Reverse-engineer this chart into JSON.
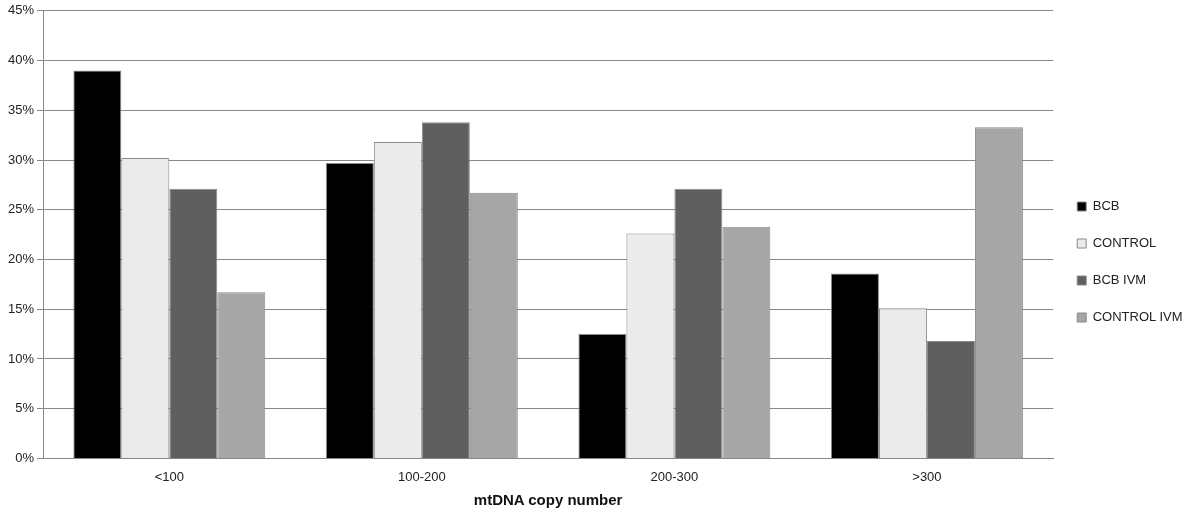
{
  "chart_data": {
    "type": "bar",
    "xlabel": "mtDNA copy number",
    "categories": [
      "<100",
      "100-200",
      "200-300",
      ">300"
    ],
    "series": [
      {
        "name": "BCB",
        "color": "#000000",
        "values": [
          39.0,
          29.7,
          12.5,
          18.6
        ]
      },
      {
        "name": "CONTROL",
        "color": "#ebebeb",
        "values": [
          30.2,
          31.8,
          22.6,
          15.1
        ]
      },
      {
        "name": "BCB IVM",
        "color": "#5f5f5f",
        "values": [
          27.1,
          33.8,
          27.1,
          11.8
        ]
      },
      {
        "name": "CONTROL IVM",
        "color": "#a6a6a6",
        "values": [
          16.7,
          26.7,
          23.3,
          33.3
        ]
      }
    ],
    "ylim": [
      0,
      45
    ],
    "yticks": [
      {
        "value": 0,
        "label": "0%"
      },
      {
        "value": 5,
        "label": "5%"
      },
      {
        "value": 10,
        "label": "10%"
      },
      {
        "value": 15,
        "label": "15%"
      },
      {
        "value": 20,
        "label": "20%"
      },
      {
        "value": 25,
        "label": "25%"
      },
      {
        "value": 30,
        "label": "30%"
      },
      {
        "value": 35,
        "label": "35%"
      },
      {
        "value": 40,
        "label": "40%"
      },
      {
        "value": 45,
        "label": "45%"
      }
    ],
    "grid": "y",
    "legend": "right"
  }
}
